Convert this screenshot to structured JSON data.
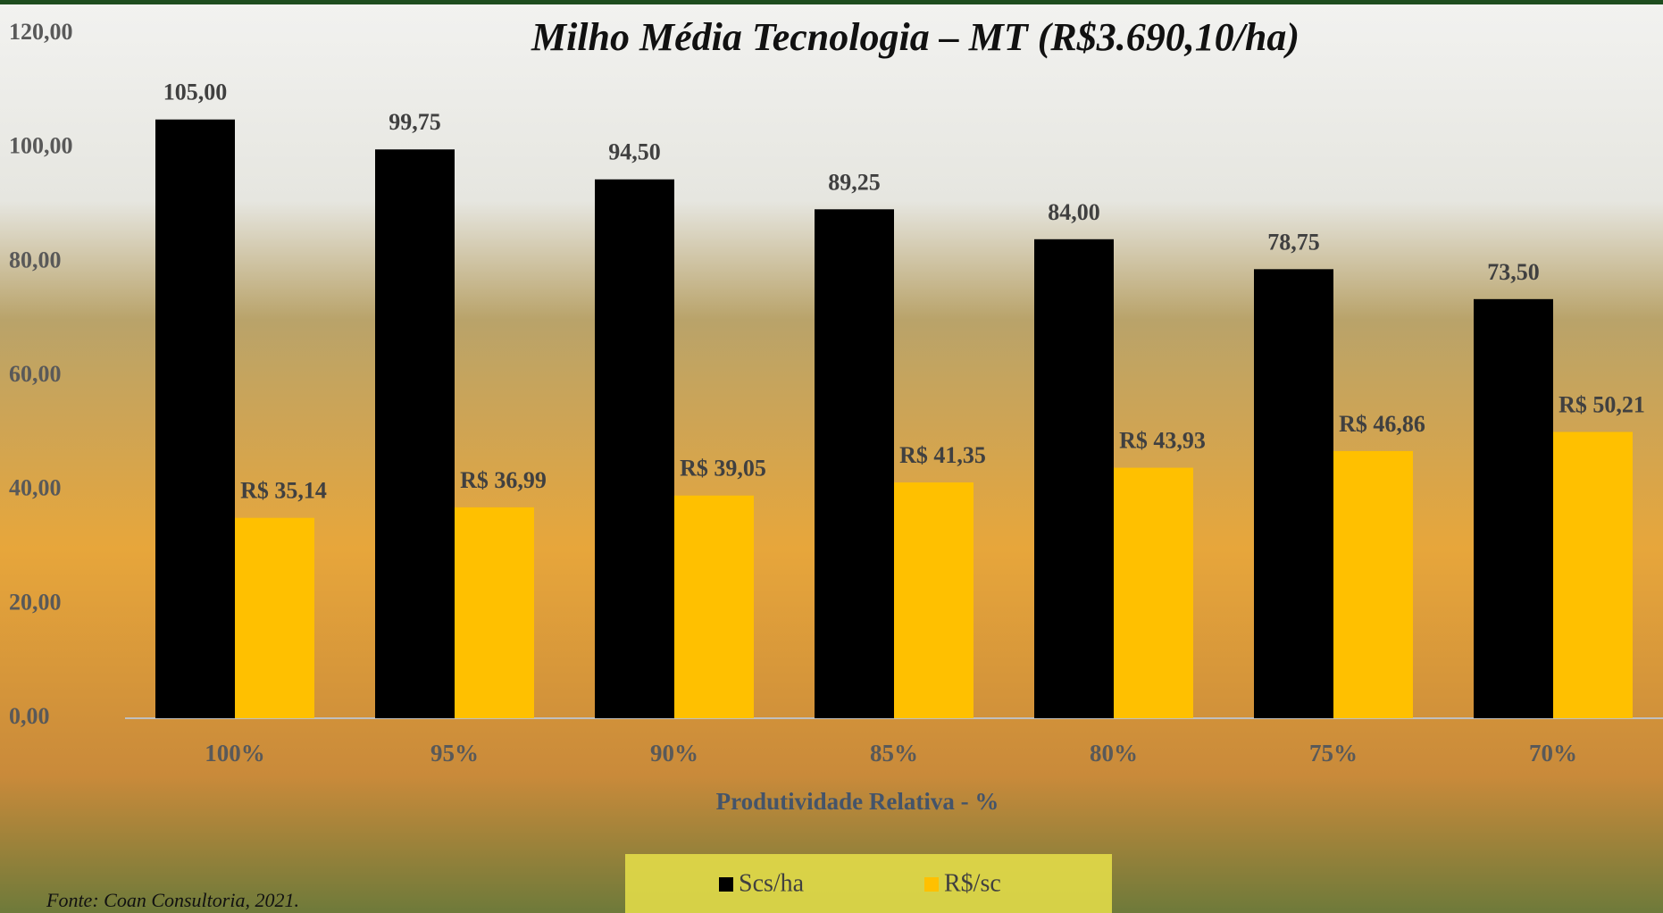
{
  "chart_data": {
    "type": "bar",
    "title": "Milho Média Tecnologia – MT (R$3.690,10/ha)",
    "x_label": "Produtividade Relativa - %",
    "source": "Fonte:  Coan Consultoria, 2021.",
    "categories": [
      "100%",
      "95%",
      "90%",
      "85%",
      "80%",
      "75%",
      "70%"
    ],
    "series": [
      {
        "name": "Scs/ha",
        "color": "#000000",
        "values": [
          105,
          99.75,
          94.5,
          89.25,
          84,
          78.75,
          73.5
        ],
        "value_labels": [
          "105,00",
          "99,75",
          "94,50",
          "89,25",
          "84,00",
          "78,75",
          "73,50"
        ]
      },
      {
        "name": "R$/sc",
        "color": "#ffc000",
        "values": [
          35.14,
          36.99,
          39.05,
          41.35,
          43.93,
          46.86,
          50.21
        ],
        "value_labels": [
          "R$ 35,14",
          "R$ 36,99",
          "R$ 39,05",
          "R$ 41,35",
          "R$ 43,93",
          "R$ 46,86",
          "R$ 50,21"
        ]
      }
    ],
    "ylim": [
      0,
      120
    ],
    "yticks": [
      {
        "value": 0,
        "label": "0,00"
      },
      {
        "value": 20,
        "label": "20,00"
      },
      {
        "value": 40,
        "label": "40,00"
      },
      {
        "value": 60,
        "label": "60,00"
      },
      {
        "value": 80,
        "label": "80,00"
      },
      {
        "value": 100,
        "label": "100,00"
      },
      {
        "value": 120,
        "label": "120,00"
      }
    ],
    "legend": "bottom"
  }
}
